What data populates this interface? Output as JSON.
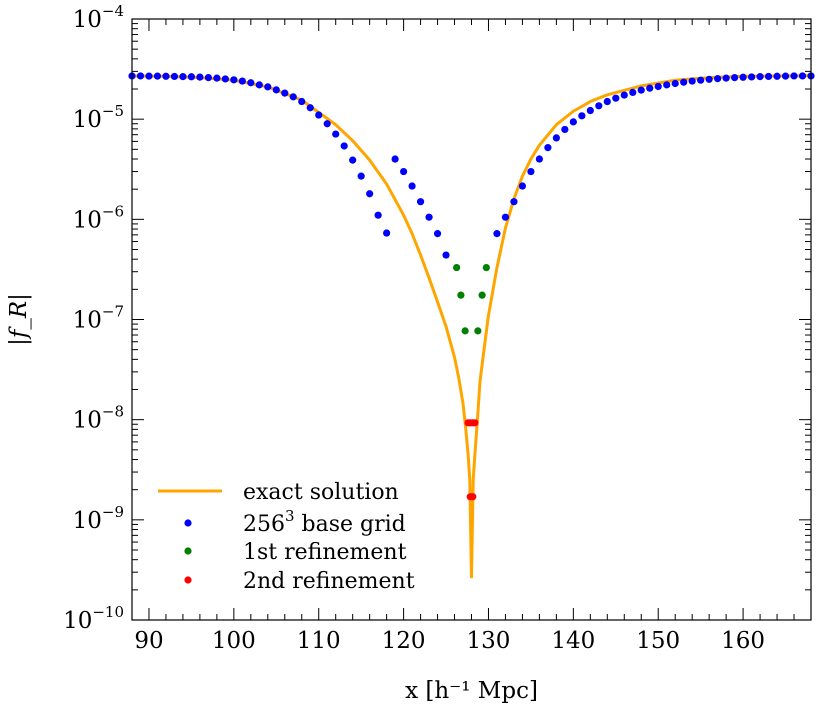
{
  "chart_data": {
    "type": "line+scatter",
    "yscale": "log",
    "xlabel": "x [h⁻¹ Mpc]",
    "ylabel": "|f_R|",
    "xlim": [
      88,
      168
    ],
    "ylim": [
      1e-10,
      0.0001
    ],
    "x_ticks": [
      90,
      100,
      110,
      120,
      130,
      140,
      150,
      160
    ],
    "x_tick_labels": [
      "90",
      "100",
      "110",
      "120",
      "130",
      "140",
      "150",
      "160"
    ],
    "y_ticks": [
      -10,
      -9,
      -8,
      -7,
      -6,
      -5,
      -4
    ],
    "y_tick_labels": [
      "10−10",
      "10−9",
      "10−8",
      "10−7",
      "10−6",
      "10−5",
      "10−4"
    ],
    "exact_solution": {
      "name": "exact solution",
      "color": "#ffa500",
      "x": [
        88,
        92,
        96,
        100,
        104,
        108,
        112,
        114,
        116,
        118,
        120,
        121,
        122,
        123,
        124,
        125,
        126,
        126.5,
        127,
        127.3,
        127.6,
        127.8,
        128,
        128.2,
        128.4,
        128.7,
        129,
        129.5,
        130,
        131,
        132,
        133,
        134,
        135,
        136,
        138,
        140,
        142,
        144,
        148,
        152,
        156,
        160,
        164,
        168
      ],
      "y": [
        2.7e-05,
        2.68e-05,
        2.6e-05,
        2.45e-05,
        2.1e-05,
        1.55e-05,
        8.8e-06,
        6.1e-06,
        3.9e-06,
        2.25e-06,
        1.1e-06,
        7.2e-07,
        4.4e-07,
        2.6e-07,
        1.5e-07,
        8.5e-08,
        4.2e-08,
        2.6e-08,
        1.45e-08,
        8.5e-09,
        4.5e-09,
        2.5e-09,
        2.7e-10,
        2.5e-09,
        4.5e-09,
        1e-08,
        2.4e-08,
        5.2e-08,
        1.1e-07,
        3.3e-07,
        8.2e-07,
        1.6e-06,
        2.7e-06,
        4e-06,
        5.5e-06,
        8.8e-06,
        1.2e-05,
        1.5e-05,
        1.75e-05,
        2.15e-05,
        2.45e-05,
        2.6e-05,
        2.68e-05,
        2.7e-05,
        2.72e-05
      ]
    },
    "series": [
      {
        "name": "256³ base grid",
        "color": "#0000ff",
        "x": [
          88,
          89,
          90,
          91,
          92,
          93,
          94,
          95,
          96,
          97,
          98,
          99,
          100,
          101,
          102,
          103,
          104,
          105,
          106,
          107,
          108,
          109,
          110,
          111,
          112,
          113,
          114,
          115,
          116,
          117,
          118,
          119,
          120,
          121,
          122,
          123,
          124,
          125,
          131,
          132,
          133,
          134,
          135,
          136,
          137,
          138,
          139,
          140,
          141,
          142,
          143,
          144,
          145,
          146,
          147,
          148,
          149,
          150,
          151,
          152,
          153,
          154,
          155,
          156,
          157,
          158,
          159,
          160,
          161,
          162,
          163,
          164,
          165,
          166,
          167,
          168
        ],
        "y": [
          2.7e-05,
          2.7e-05,
          2.69e-05,
          2.69e-05,
          2.68e-05,
          2.67e-05,
          2.66e-05,
          2.65e-05,
          2.63e-05,
          2.6e-05,
          2.57e-05,
          2.52e-05,
          2.47e-05,
          2.4e-05,
          2.31e-05,
          2.2e-05,
          2.1e-05,
          1.96e-05,
          1.82e-05,
          1.67e-05,
          1.5e-05,
          1.3e-05,
          1.1e-05,
          9e-06,
          7.1e-06,
          5.4e-06,
          3.9e-06,
          2.7e-06,
          1.8e-06,
          1.1e-06,
          7.3e-07,
          4e-06,
          3e-06,
          2.15e-06,
          1.5e-06,
          1.05e-06,
          7.2e-07,
          4.4e-07,
          7.2e-07,
          1.05e-06,
          1.5e-06,
          2.15e-06,
          3e-06,
          4e-06,
          5.2e-06,
          6.5e-06,
          7.9e-06,
          9.4e-06,
          1.08e-05,
          1.22e-05,
          1.36e-05,
          1.5e-05,
          1.62e-05,
          1.74e-05,
          1.85e-05,
          1.95e-05,
          2.04e-05,
          2.12e-05,
          2.2e-05,
          2.27e-05,
          2.34e-05,
          2.4e-05,
          2.45e-05,
          2.5e-05,
          2.54e-05,
          2.57e-05,
          2.6e-05,
          2.62e-05,
          2.64e-05,
          2.66e-05,
          2.67e-05,
          2.68e-05,
          2.69e-05,
          2.7e-05,
          2.7e-05,
          2.7e-05
        ]
      },
      {
        "name": "1st refinement",
        "color": "#008000",
        "x": [
          126.25,
          126.75,
          127.25,
          128.75,
          129.25,
          129.75
        ],
        "y": [
          3.3e-07,
          1.75e-07,
          7.7e-08,
          7.7e-08,
          1.75e-07,
          3.3e-07
        ]
      },
      {
        "name": "2nd refinement",
        "color": "#ff0000",
        "x": [
          127.6,
          127.85,
          128.15,
          128.4,
          127.85,
          128.15
        ],
        "y": [
          9.3e-09,
          9.3e-09,
          9.3e-09,
          9.3e-09,
          1.7e-09,
          1.7e-09
        ]
      }
    ],
    "legend": {
      "position": "lower-left",
      "entries": [
        {
          "label": "exact solution",
          "kind": "line",
          "color": "#ffa500"
        },
        {
          "label": "256",
          "sup": "3",
          "suffix": " base grid",
          "kind": "dot",
          "color": "#0000ff"
        },
        {
          "label": "1st refinement",
          "kind": "dot",
          "color": "#008000"
        },
        {
          "label": "2nd refinement",
          "kind": "dot",
          "color": "#ff0000"
        }
      ]
    }
  }
}
